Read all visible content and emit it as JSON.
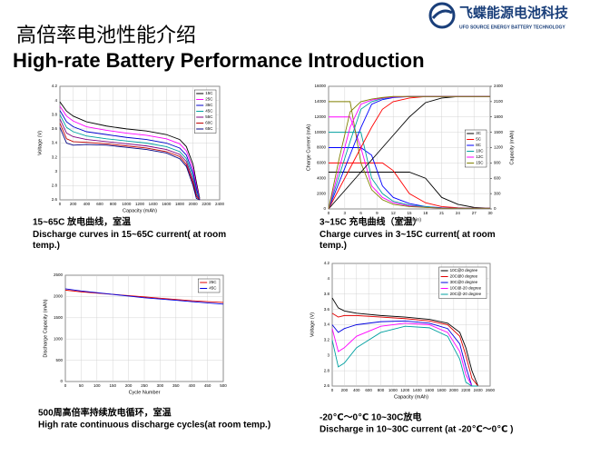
{
  "header": {
    "title_cn": "高倍率电池性能介绍",
    "title_en": "High-rate Battery Performance Introduction",
    "logo_cn": "飞蝶能源电池科技",
    "logo_en": "UFO SOURCE ENERGY BATTERY TECHNOLOGY"
  },
  "chart_data": [
    {
      "type": "line",
      "title": "15~65C 放电曲线，室温",
      "subtitle": "Discharge curves in 15~65C current( at room temp.)",
      "xlabel": "Capacity (mAh)",
      "ylabel": "Voltage (V)",
      "xlim": [
        0,
        2400
      ],
      "xticks": [
        0,
        200,
        400,
        600,
        800,
        1000,
        1200,
        1400,
        1600,
        1800,
        2000,
        2200,
        2400
      ],
      "ylim": [
        2.6,
        4.2
      ],
      "yticks": [
        2.6,
        2.8,
        3,
        3.2,
        3.4,
        3.6,
        3.8,
        4,
        4.2
      ],
      "grid": true,
      "legend": "upper right",
      "x": [
        0,
        100,
        200,
        400,
        700,
        1000,
        1300,
        1600,
        1800,
        1900,
        2000,
        2050,
        2100
      ],
      "series": [
        {
          "name": "15C",
          "color": "#000000",
          "values": [
            3.98,
            3.85,
            3.78,
            3.7,
            3.64,
            3.6,
            3.57,
            3.52,
            3.45,
            3.35,
            3.1,
            2.85,
            2.62
          ]
        },
        {
          "name": "25C",
          "color": "#ff00ff",
          "values": [
            3.92,
            3.78,
            3.71,
            3.63,
            3.58,
            3.54,
            3.51,
            3.46,
            3.39,
            3.29,
            3.04,
            2.8,
            2.6
          ]
        },
        {
          "name": "35C",
          "color": "#0000cc",
          "values": [
            3.86,
            3.7,
            3.63,
            3.56,
            3.52,
            3.48,
            3.45,
            3.4,
            3.33,
            3.23,
            2.98,
            2.76,
            2.6
          ]
        },
        {
          "name": "45C",
          "color": "#00a0a0",
          "values": [
            3.8,
            3.62,
            3.56,
            3.5,
            3.46,
            3.43,
            3.4,
            3.35,
            3.28,
            3.18,
            2.93,
            2.72,
            2.6
          ]
        },
        {
          "name": "55C",
          "color": "#800080",
          "values": [
            3.74,
            3.54,
            3.49,
            3.45,
            3.42,
            3.39,
            3.36,
            3.31,
            3.24,
            3.14,
            2.88,
            2.68,
            2.6
          ]
        },
        {
          "name": "60C",
          "color": "#c00000",
          "values": [
            3.68,
            3.46,
            3.42,
            3.41,
            3.39,
            3.36,
            3.33,
            3.28,
            3.21,
            3.1,
            2.84,
            2.65,
            2.6
          ]
        },
        {
          "name": "65C",
          "color": "#000080",
          "values": [
            3.62,
            3.4,
            3.37,
            3.38,
            3.37,
            3.34,
            3.31,
            3.26,
            3.18,
            3.07,
            2.8,
            2.62,
            2.6
          ]
        }
      ]
    },
    {
      "type": "line",
      "title": "3~15C 充电曲线（室温）",
      "subtitle": "Charge curves in 3~15C current( at room temp.)",
      "xlabel": "Time (min)",
      "ylabel": "Charge Current (mA)",
      "y2label": "Capacity (mAh)",
      "xlim": [
        0,
        30
      ],
      "xticks": [
        0,
        3,
        6,
        9,
        12,
        15,
        18,
        21,
        24,
        27,
        30
      ],
      "ylim": [
        0,
        16000
      ],
      "yticks": [
        0,
        2000,
        4000,
        6000,
        8000,
        10000,
        12000,
        14000,
        16000
      ],
      "y2lim": [
        0,
        2400
      ],
      "y2ticks": [
        0,
        300,
        600,
        900,
        1200,
        1500,
        1800,
        2100,
        2400
      ],
      "grid": true,
      "legend": "center right",
      "x": [
        0,
        2,
        4,
        6,
        8,
        10,
        12,
        15,
        18,
        21,
        24,
        27,
        30
      ],
      "series": [
        {
          "name": "3C",
          "color": "#000000",
          "values": [
            4800,
            4800,
            4800,
            4800,
            4800,
            4800,
            4800,
            4800,
            4000,
            1500,
            600,
            200,
            100
          ]
        },
        {
          "name": "5C",
          "color": "#ff0000",
          "values": [
            6000,
            6000,
            6000,
            6000,
            6000,
            6000,
            5000,
            2000,
            800,
            300,
            150,
            100,
            100
          ]
        },
        {
          "name": "8C",
          "color": "#0000ff",
          "values": [
            8000,
            8000,
            8000,
            8000,
            7000,
            3000,
            1500,
            700,
            300,
            150,
            100,
            100,
            100
          ]
        },
        {
          "name": "10C",
          "color": "#00a0a0",
          "values": [
            10000,
            10000,
            10000,
            10000,
            4000,
            2000,
            1000,
            500,
            300,
            100,
            100,
            100,
            100
          ]
        },
        {
          "name": "12C",
          "color": "#ff00ff",
          "values": [
            12000,
            12000,
            12000,
            8000,
            3000,
            1500,
            800,
            400,
            200,
            100,
            100,
            100,
            100
          ]
        },
        {
          "name": "15C",
          "color": "#808000",
          "values": [
            14000,
            14000,
            14000,
            6000,
            2500,
            1200,
            600,
            300,
            200,
            100,
            100,
            100,
            100
          ]
        },
        {
          "color": "#000000",
          "axis": "y2",
          "values": [
            0,
            240,
            480,
            720,
            960,
            1200,
            1440,
            1800,
            2080,
            2170,
            2200,
            2200,
            2200
          ]
        },
        {
          "color": "#ff0000",
          "axis": "y2",
          "values": [
            0,
            400,
            800,
            1200,
            1600,
            1950,
            2100,
            2170,
            2200,
            2200,
            2200,
            2200,
            2200
          ]
        },
        {
          "color": "#0000ff",
          "axis": "y2",
          "values": [
            0,
            530,
            1060,
            1590,
            2050,
            2140,
            2180,
            2200,
            2200,
            2200,
            2200,
            2200,
            2200
          ]
        },
        {
          "color": "#00a0a0",
          "axis": "y2",
          "values": [
            0,
            660,
            1320,
            1950,
            2100,
            2160,
            2190,
            2200,
            2200,
            2200,
            2200,
            2200,
            2200
          ]
        },
        {
          "color": "#ff00ff",
          "axis": "y2",
          "values": [
            0,
            800,
            1600,
            2050,
            2130,
            2170,
            2190,
            2200,
            2200,
            2200,
            2200,
            2200,
            2200
          ]
        },
        {
          "color": "#808000",
          "axis": "y2",
          "values": [
            0,
            1000,
            1900,
            2100,
            2150,
            2180,
            2200,
            2200,
            2200,
            2200,
            2200,
            2200,
            2200
          ]
        }
      ]
    },
    {
      "type": "line",
      "title": "500周高倍率持续放电循环，室温",
      "subtitle": "High rate continuous discharge cycles(at room temp.)",
      "xlabel": "Cycle Number",
      "ylabel": "Discharge Capacity (mAh)",
      "xlim": [
        0,
        500
      ],
      "xticks": [
        0,
        50,
        100,
        150,
        200,
        250,
        300,
        350,
        400,
        450,
        500
      ],
      "ylim": [
        0,
        2500
      ],
      "yticks": [
        0,
        500,
        1000,
        1500,
        2000,
        2500
      ],
      "grid": true,
      "legend": "upper right",
      "x": [
        0,
        50,
        100,
        150,
        200,
        250,
        300,
        350,
        400,
        450,
        500
      ],
      "series": [
        {
          "name": "25C",
          "color": "#e00000",
          "values": [
            2150,
            2110,
            2080,
            2050,
            2020,
            1990,
            1960,
            1930,
            1900,
            1880,
            1860
          ]
        },
        {
          "name": "45C",
          "color": "#0000e0",
          "values": [
            2180,
            2130,
            2090,
            2050,
            2010,
            1970,
            1940,
            1910,
            1880,
            1850,
            1820
          ]
        }
      ]
    },
    {
      "type": "line",
      "title": "-20℃～0℃ 10~30C放电",
      "subtitle": "Discharge  in 10~30C current (at -20℃～0℃ )",
      "xlabel": "Capacity (mAh)",
      "ylabel": "Voltage (V)",
      "xlim": [
        0,
        2600
      ],
      "xticks": [
        0,
        200,
        400,
        600,
        800,
        1000,
        1200,
        1400,
        1600,
        1800,
        2000,
        2200,
        2400,
        2600
      ],
      "ylim": [
        2.6,
        4.2
      ],
      "yticks": [
        2.6,
        2.8,
        3,
        3.2,
        3.4,
        3.6,
        3.8,
        4,
        4.2
      ],
      "grid": true,
      "legend": "upper right",
      "x": [
        0,
        100,
        200,
        400,
        800,
        1200,
        1600,
        1900,
        2100,
        2200,
        2300,
        2400
      ],
      "series": [
        {
          "name": "10C@0 degree",
          "color": "#000000",
          "values": [
            3.75,
            3.62,
            3.58,
            3.55,
            3.52,
            3.5,
            3.47,
            3.42,
            3.3,
            3.1,
            2.8,
            2.6
          ]
        },
        {
          "name": "20C@0 degree",
          "color": "#e00000",
          "values": [
            3.55,
            3.5,
            3.52,
            3.52,
            3.5,
            3.48,
            3.45,
            3.4,
            3.25,
            3.0,
            2.7,
            2.6
          ]
        },
        {
          "name": "30C@0 degree",
          "color": "#0000e0",
          "values": [
            3.4,
            3.3,
            3.35,
            3.4,
            3.44,
            3.45,
            3.42,
            3.35,
            3.15,
            2.85,
            2.6,
            2.6
          ]
        },
        {
          "name": "10C@-20 degree",
          "color": "#ff00ff",
          "values": [
            3.35,
            3.05,
            3.1,
            3.25,
            3.38,
            3.42,
            3.4,
            3.3,
            3.05,
            2.75,
            2.6,
            2.6
          ]
        },
        {
          "name": "20C@-20 degree",
          "color": "#00a0a0",
          "values": [
            3.2,
            2.85,
            2.9,
            3.1,
            3.3,
            3.38,
            3.36,
            3.25,
            2.95,
            2.65,
            2.6,
            2.6
          ]
        }
      ]
    }
  ]
}
